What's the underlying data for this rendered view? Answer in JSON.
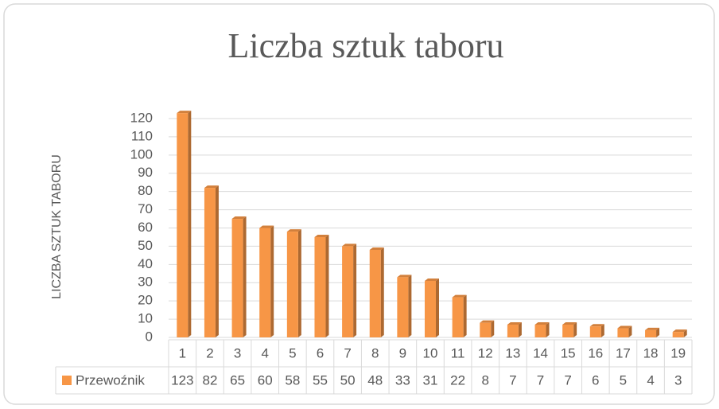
{
  "chart_data": {
    "type": "bar",
    "title": "Liczba sztuk taboru",
    "y_label": "LICZBA SZTUK TABORU",
    "categories": [
      "1",
      "2",
      "3",
      "4",
      "5",
      "6",
      "7",
      "8",
      "9",
      "10",
      "11",
      "12",
      "13",
      "14",
      "15",
      "16",
      "17",
      "18",
      "19"
    ],
    "series": [
      {
        "name": "Przewoźnik",
        "color": "#f79646",
        "values": [
          123,
          82,
          65,
          60,
          58,
          55,
          50,
          48,
          33,
          31,
          22,
          8,
          7,
          7,
          7,
          6,
          5,
          4,
          3
        ]
      }
    ],
    "ylim": [
      0,
      120
    ],
    "yticks": [
      0,
      10,
      20,
      30,
      40,
      50,
      60,
      70,
      80,
      90,
      100,
      110,
      120
    ],
    "grid": true,
    "data_table": true
  }
}
